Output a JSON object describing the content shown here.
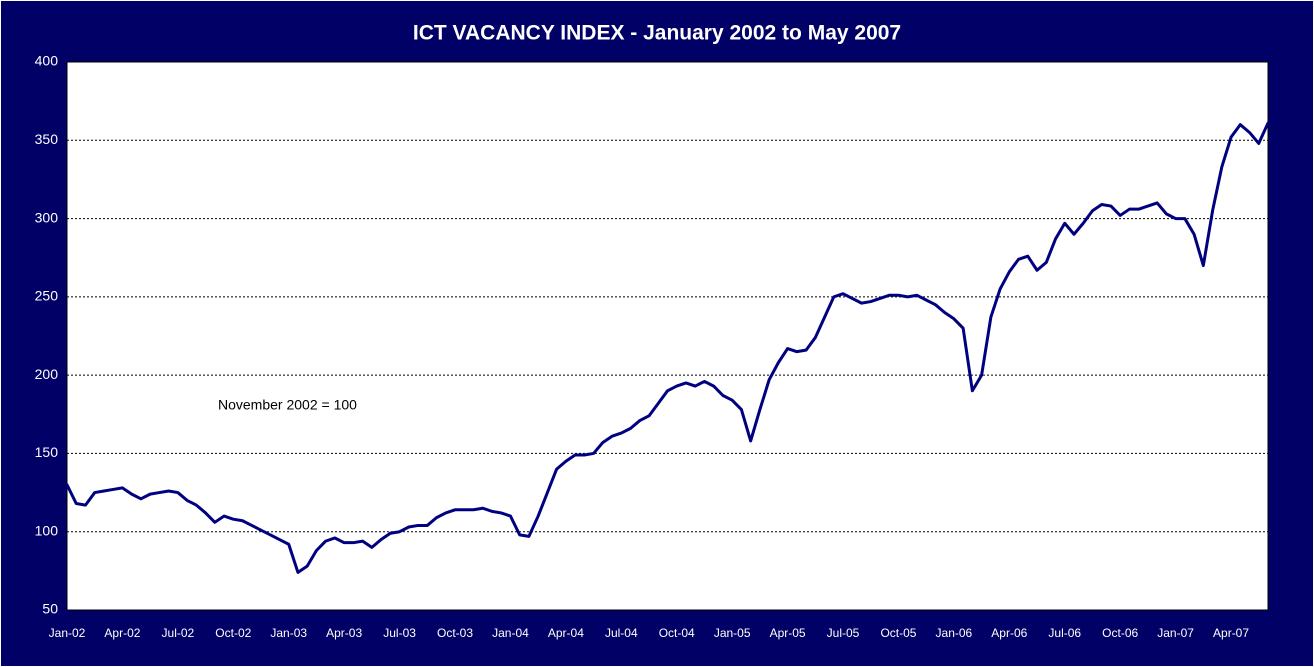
{
  "chart_data": {
    "type": "line",
    "title": "ICT VACANCY INDEX  -  January 2002 to May 2007",
    "annotation": "November 2002 = 100",
    "color": "#000080",
    "grid": true,
    "ylim": [
      50,
      400
    ],
    "yticks": [
      50,
      100,
      150,
      200,
      250,
      300,
      350,
      400
    ],
    "categories": [
      "Jan-02",
      null,
      null,
      null,
      null,
      null,
      "Apr-02",
      null,
      null,
      null,
      null,
      null,
      "Jul-02",
      null,
      null,
      null,
      null,
      null,
      "Oct-02",
      null,
      null,
      null,
      null,
      null,
      "Jan-03",
      null,
      null,
      null,
      null,
      null,
      "Apr-03",
      null,
      null,
      null,
      null,
      null,
      "Jul-03",
      null,
      null,
      null,
      null,
      null,
      "Oct-03",
      null,
      null,
      null,
      null,
      null,
      "Jan-04",
      null,
      null,
      null,
      null,
      null,
      "Apr-04",
      null,
      null,
      null,
      null,
      null,
      "Jul-04",
      null,
      null,
      null,
      null,
      null,
      "Oct-04",
      null,
      null,
      null,
      null,
      null,
      "Jan-05",
      null,
      null,
      null,
      null,
      null,
      "Apr-05",
      null,
      null,
      null,
      null,
      null,
      "Jul-05",
      null,
      null,
      null,
      null,
      null,
      "Oct-05",
      null,
      null,
      null,
      null,
      null,
      "Jan-06",
      null,
      null,
      null,
      null,
      null,
      "Apr-06",
      null,
      null,
      null,
      null,
      null,
      "Jul-06",
      null,
      null,
      null,
      null,
      null,
      "Oct-06",
      null,
      null,
      null,
      null,
      null,
      "Jan-07",
      null,
      null,
      null,
      null,
      null,
      "Apr-07",
      null,
      null,
      null,
      null
    ],
    "values": [
      130,
      118,
      117,
      125,
      126,
      127,
      128,
      124,
      121,
      124,
      125,
      126,
      125,
      120,
      117,
      112,
      106,
      110,
      108,
      107,
      104,
      101,
      98,
      95,
      92,
      74,
      78,
      88,
      94,
      96,
      93,
      93,
      94,
      90,
      95,
      99,
      100,
      103,
      104,
      104,
      109,
      112,
      114,
      114,
      114,
      115,
      113,
      112,
      110,
      98,
      97,
      110,
      125,
      140,
      145,
      149,
      149,
      150,
      157,
      161,
      163,
      166,
      171,
      174,
      182,
      190,
      193,
      195,
      193,
      196,
      193,
      187,
      184,
      178,
      158,
      178,
      197,
      208,
      217,
      215,
      216,
      224,
      237,
      250,
      252,
      249,
      246,
      247,
      249,
      251,
      251,
      250,
      251,
      248,
      245,
      240,
      236,
      230,
      190,
      200,
      237,
      255,
      266,
      274,
      276,
      267,
      272,
      287,
      297,
      290,
      297,
      305,
      309,
      308,
      302,
      306,
      306,
      308,
      310,
      303,
      300,
      300,
      290,
      270,
      305,
      333,
      352,
      360,
      355,
      348,
      361
    ]
  }
}
